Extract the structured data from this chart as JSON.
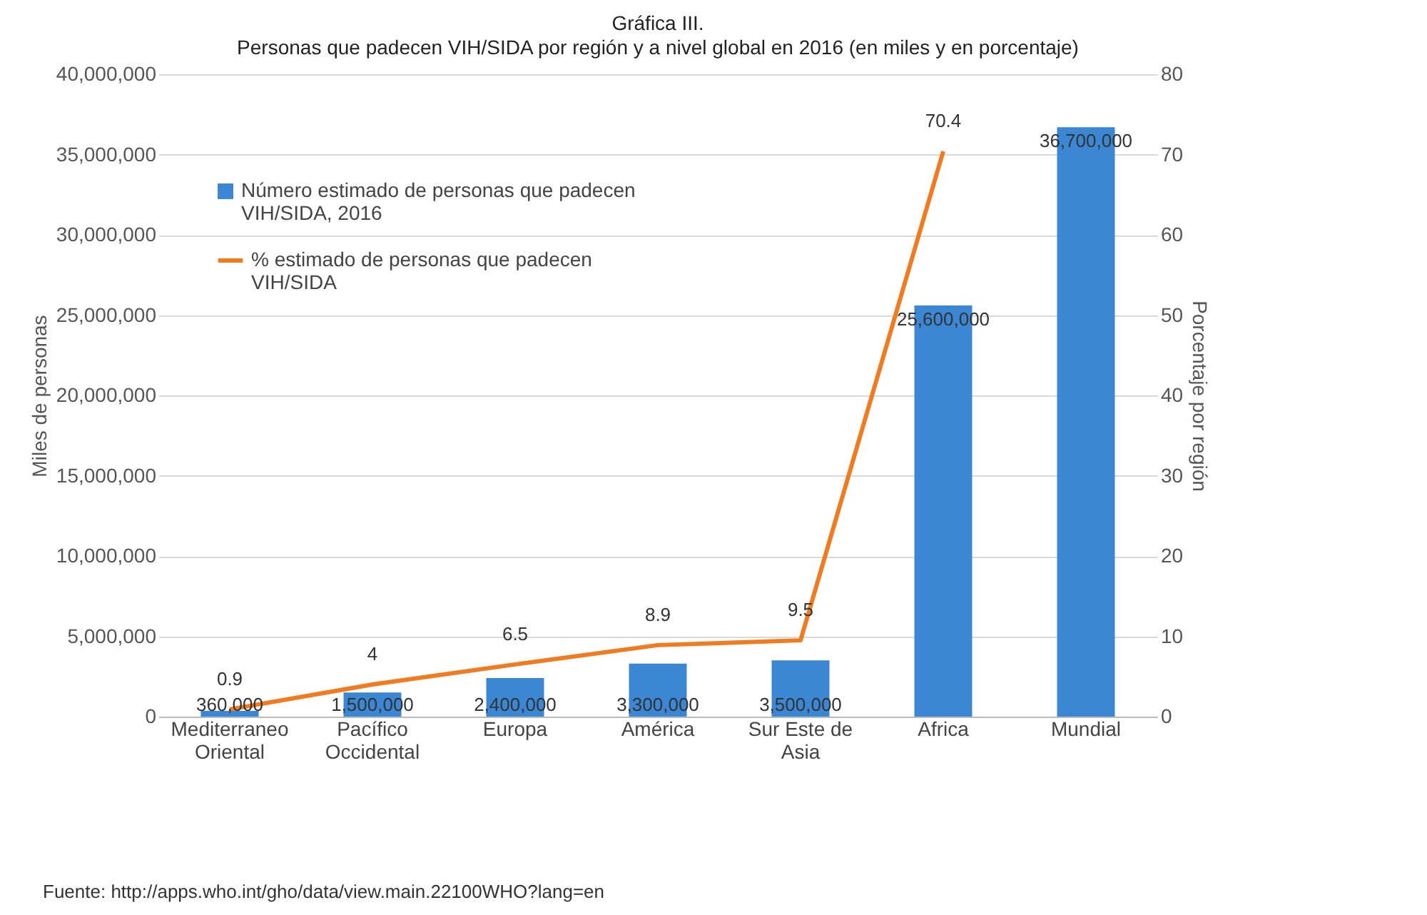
{
  "chart_data": {
    "type": "bar",
    "title": "Gráfica III.",
    "subtitle": "Personas que padecen VIH/SIDA por región y a nivel global en 2016 (en miles y en porcentaje)",
    "categories": [
      "Mediterraneo Oriental",
      "Pacífico Occidental",
      "Europa",
      "América",
      "Sur Este de Asia",
      "Africa",
      "Mundial"
    ],
    "series": [
      {
        "name": "Número estimado de personas  que padecen VIH/SIDA, 2016",
        "color": "#3b87d4",
        "values": [
          360000,
          1500000,
          2400000,
          3300000,
          3500000,
          25600000,
          36700000
        ],
        "value_labels": [
          "360,000",
          "1,500,000",
          "2,400,000",
          "3,300,000",
          "3,500,000",
          "25,600,000",
          "36,700,000"
        ]
      },
      {
        "name": "% estimado de personas que padecen VIH/SIDA",
        "type": "line",
        "axis": "y2",
        "color": "#f07b21",
        "values": [
          0.9,
          4,
          6.5,
          8.9,
          9.5,
          70.4,
          null
        ],
        "value_labels": [
          "0.9",
          "4",
          "6.5",
          "8.9",
          "9.5",
          "70.4",
          null
        ]
      }
    ],
    "ylabel": "Miles de personas",
    "y2label": "Porcentaje por región",
    "ylim": [
      0,
      40000000
    ],
    "yticks": [
      0,
      {
        "value": 5000000,
        "label": "5,000,000"
      },
      {
        "value": 10000000,
        "label": "10,000,000"
      },
      {
        "value": 15000000,
        "label": "15,000,000"
      },
      {
        "value": 20000000,
        "label": "20,000,000"
      },
      {
        "value": 25000000,
        "label": "25,000,000"
      },
      {
        "value": 30000000,
        "label": "30,000,000"
      },
      {
        "value": 35000000,
        "label": "35,000,000"
      },
      {
        "value": 40000000,
        "label": "40,000,000"
      }
    ],
    "y2lim": [
      0,
      80
    ],
    "y2ticks": [
      0,
      10,
      20,
      30,
      40,
      50,
      60,
      70,
      80
    ],
    "grid": "y",
    "legend": "top left",
    "annotations": [
      "Fuente:  http://apps.who.int/gho/data/view.main.22100WHO?lang=en"
    ]
  }
}
